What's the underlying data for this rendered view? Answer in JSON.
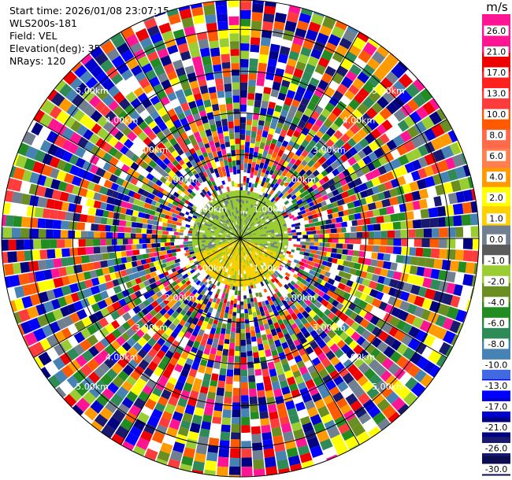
{
  "info": {
    "start_time": "Start time: 2026/01/08 23:07:15",
    "site": "WLS200s-181",
    "field": "Field: VEL",
    "elevation": "Elevation(deg): 35.00",
    "nrays": "NRays: 120"
  },
  "chart_data": {
    "type": "heatmap",
    "projection": "polar-ppi",
    "field": "VEL",
    "elevation_deg": 35.0,
    "nrays": 120,
    "range_rings_km": [
      1.0,
      2.0,
      3.0,
      4.0,
      5.0
    ],
    "range_ring_labels": [
      "1.00km",
      "2.00km",
      "3.00km",
      "4.00km",
      "5.00km"
    ],
    "max_range_km": 5.7,
    "inner_clear_range_km": 1.15,
    "radial_lines_deg": [
      0,
      30,
      60,
      90,
      120,
      150,
      180,
      210,
      240,
      270,
      300,
      330
    ],
    "colorbar": {
      "unit": "m/s",
      "ticks": [
        "26.0",
        "21.0",
        "17.0",
        "13.0",
        "10.0",
        "8.0",
        "6.0",
        "4.0",
        "2.0",
        "1.0",
        "0.0",
        "-1.0",
        "-2.0",
        "-4.0",
        "-6.0",
        "-8.0",
        "-10.0",
        "-13.0",
        "-17.0",
        "-21.0",
        "-26.0",
        "-30.0"
      ],
      "colors": [
        "#ff1493",
        "#ff1493",
        "#ee0000",
        "#ff2020",
        "#ff3c3c",
        "#ff5a00",
        "#ff6a4a",
        "#ff7f50",
        "#ff9a00",
        "#ffff00",
        "#ffd000",
        "#708090",
        "#5a5a5a",
        "#9acd32",
        "#6b8e23",
        "#228b22",
        "#2e8b57",
        "#4682b4",
        "#4169e1",
        "#0000ff",
        "#0000cd",
        "#000080",
        "#191970",
        "#0c0c50"
      ]
    }
  }
}
